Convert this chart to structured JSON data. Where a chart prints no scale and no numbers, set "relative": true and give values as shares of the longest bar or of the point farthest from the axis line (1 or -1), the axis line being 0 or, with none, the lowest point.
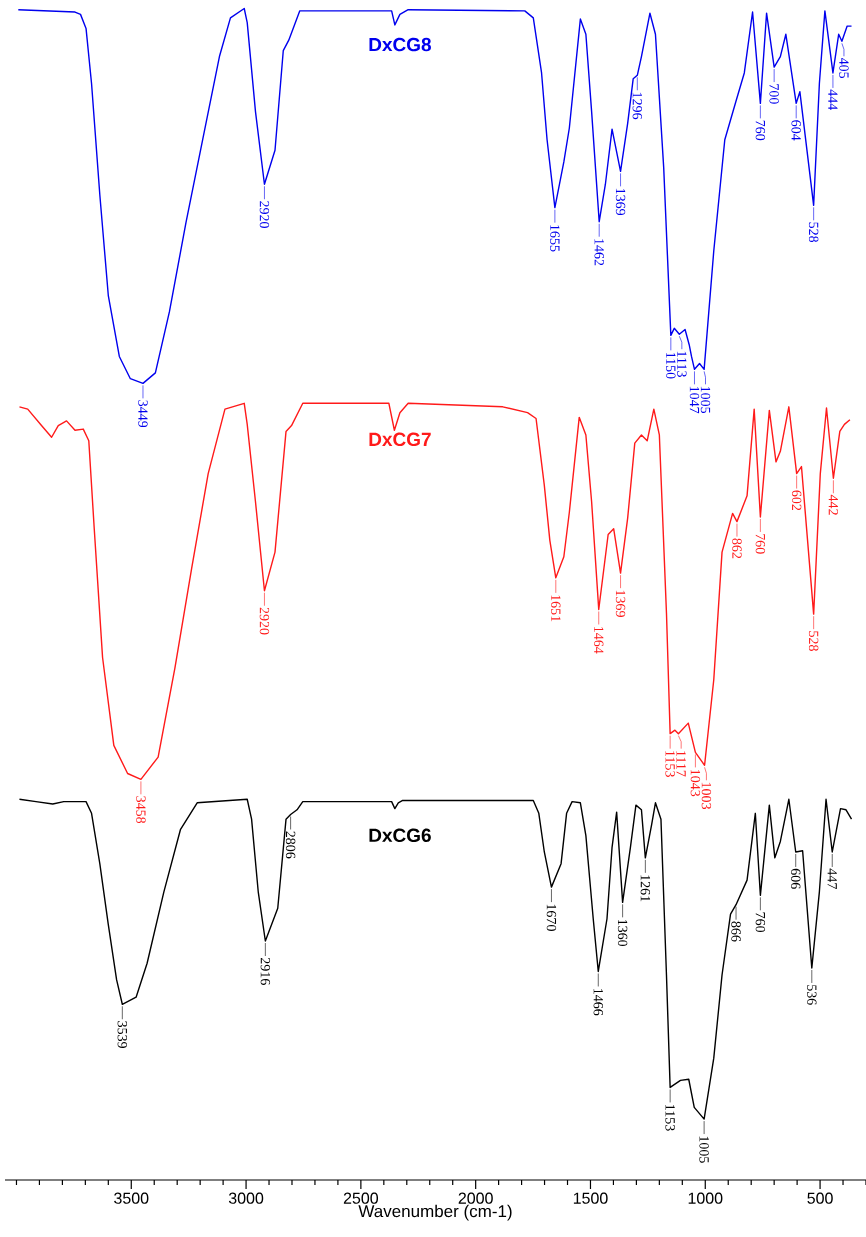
{
  "chart_data": {
    "type": "line",
    "relative": true,
    "xlabel": "Wavenumber (cm-1)",
    "xlim": [
      4050,
      300
    ],
    "xticks": [
      3500,
      3000,
      2500,
      2000,
      1500,
      1000,
      500
    ],
    "series": [
      {
        "name": "DxCG8",
        "color": "#0000ee",
        "x": [
          3992,
          3745,
          3721,
          3697,
          3673,
          3637,
          3600,
          3552,
          3504,
          3449,
          3395,
          3334,
          3262,
          3189,
          3116,
          3068,
          3008,
          2995,
          2959,
          2920,
          2874,
          2838,
          2814,
          2766,
          2366,
          2352,
          2330,
          2294,
          1786,
          1749,
          1713,
          1689,
          1655,
          1616,
          1592,
          1544,
          1520,
          1495,
          1462,
          1435,
          1406,
          1369,
          1338,
          1314,
          1296,
          1278,
          1241,
          1217,
          1181,
          1150,
          1135,
          1113,
          1088,
          1070,
          1060,
          1047,
          1025,
          1005,
          963,
          915,
          866,
          830,
          794,
          760,
          733,
          700,
          673,
          649,
          604,
          588,
          528,
          503,
          479,
          444,
          419,
          405,
          382,
          363
        ],
        "values": [
          0.999,
          0.997,
          0.995,
          0.983,
          0.936,
          0.841,
          0.755,
          0.703,
          0.684,
          0.68,
          0.689,
          0.741,
          0.817,
          0.888,
          0.959,
          0.992,
          1.0,
          0.988,
          0.912,
          0.85,
          0.879,
          0.964,
          0.973,
          0.998,
          0.998,
          0.986,
          0.995,
          0.999,
          0.998,
          0.992,
          0.945,
          0.888,
          0.83,
          0.869,
          0.898,
          0.991,
          0.978,
          0.912,
          0.818,
          0.85,
          0.897,
          0.861,
          0.902,
          0.94,
          0.943,
          0.959,
          0.996,
          0.978,
          0.864,
          0.721,
          0.727,
          0.722,
          0.726,
          0.713,
          0.703,
          0.692,
          0.697,
          0.692,
          0.793,
          0.888,
          0.921,
          0.945,
          0.997,
          0.919,
          0.996,
          0.95,
          0.959,
          0.978,
          0.919,
          0.929,
          0.832,
          0.936,
          0.998,
          0.945,
          0.978,
          0.972,
          0.985,
          0.985
        ]
      },
      {
        "name": "DxCG7",
        "color": "#ff1a1a",
        "x": [
          3987,
          3951,
          3891,
          3847,
          3818,
          3782,
          3745,
          3709,
          3685,
          3661,
          3625,
          3576,
          3516,
          3458,
          3383,
          3310,
          3237,
          3165,
          3092,
          3008,
          2995,
          2959,
          2920,
          2874,
          2826,
          2802,
          2753,
          2378,
          2354,
          2330,
          2294,
          1882,
          1774,
          1737,
          1701,
          1677,
          1651,
          1616,
          1592,
          1549,
          1520,
          1495,
          1464,
          1423,
          1399,
          1369,
          1338,
          1307,
          1278,
          1253,
          1224,
          1200,
          1169,
          1153,
          1132,
          1117,
          1074,
          1043,
          1003,
          963,
          927,
          881,
          862,
          818,
          787,
          760,
          721,
          692,
          673,
          636,
          602,
          581,
          528,
          499,
          472,
          442,
          414,
          394,
          370
        ],
        "values": [
          0.66,
          0.658,
          0.644,
          0.634,
          0.644,
          0.648,
          0.64,
          0.641,
          0.631,
          0.555,
          0.446,
          0.371,
          0.347,
          0.342,
          0.361,
          0.437,
          0.522,
          0.603,
          0.658,
          0.663,
          0.645,
          0.579,
          0.503,
          0.536,
          0.639,
          0.644,
          0.663,
          0.663,
          0.64,
          0.655,
          0.663,
          0.66,
          0.655,
          0.65,
          0.593,
          0.546,
          0.514,
          0.532,
          0.57,
          0.651,
          0.636,
          0.579,
          0.487,
          0.551,
          0.556,
          0.518,
          0.565,
          0.629,
          0.636,
          0.631,
          0.658,
          0.636,
          0.484,
          0.381,
          0.384,
          0.381,
          0.39,
          0.365,
          0.354,
          0.427,
          0.536,
          0.569,
          0.562,
          0.584,
          0.658,
          0.566,
          0.657,
          0.613,
          0.622,
          0.66,
          0.603,
          0.609,
          0.483,
          0.603,
          0.659,
          0.599,
          0.639,
          0.645,
          0.649
        ]
      },
      {
        "name": "DxCG6",
        "color": "#000000",
        "x": [
          3987,
          3915,
          3842,
          3794,
          3697,
          3673,
          3637,
          3600,
          3564,
          3539,
          3479,
          3431,
          3358,
          3286,
          3213,
          2995,
          2976,
          2947,
          2916,
          2862,
          2826,
          2806,
          2778,
          2753,
          2366,
          2352,
          2337,
          2318,
          1749,
          1725,
          1701,
          1670,
          1628,
          1604,
          1580,
          1544,
          1520,
          1488,
          1466,
          1428,
          1406,
          1386,
          1360,
          1326,
          1302,
          1278,
          1261,
          1234,
          1217,
          1193,
          1169,
          1153,
          1108,
          1072,
          1048,
          1005,
          963,
          927,
          890,
          866,
          818,
          782,
          760,
          721,
          697,
          673,
          636,
          606,
          576,
          536,
          503,
          474,
          447,
          411,
          387,
          363
        ],
        "values": [
          0.325,
          0.323,
          0.321,
          0.323,
          0.323,
          0.313,
          0.27,
          0.218,
          0.171,
          0.15,
          0.156,
          0.185,
          0.246,
          0.299,
          0.322,
          0.325,
          0.308,
          0.246,
          0.204,
          0.232,
          0.308,
          0.312,
          0.316,
          0.323,
          0.323,
          0.317,
          0.322,
          0.324,
          0.324,
          0.313,
          0.28,
          0.25,
          0.27,
          0.313,
          0.323,
          0.322,
          0.294,
          0.223,
          0.178,
          0.223,
          0.284,
          0.314,
          0.237,
          0.284,
          0.32,
          0.316,
          0.275,
          0.303,
          0.322,
          0.308,
          0.175,
          0.079,
          0.085,
          0.086,
          0.062,
          0.052,
          0.104,
          0.175,
          0.227,
          0.235,
          0.256,
          0.313,
          0.243,
          0.32,
          0.275,
          0.289,
          0.325,
          0.28,
          0.281,
          0.181,
          0.246,
          0.325,
          0.28,
          0.317,
          0.316,
          0.308
        ]
      }
    ],
    "annotations": [
      {
        "text": "3449",
        "x": 3449,
        "y": 0.68
      },
      {
        "text": "2920",
        "x": 2920,
        "y": 0.85
      },
      {
        "text": "1655",
        "x": 1655,
        "y": 0.83
      },
      {
        "text": "1462",
        "x": 1462,
        "y": 0.818
      },
      {
        "text": "1369",
        "x": 1369,
        "y": 0.861
      },
      {
        "text": "1296",
        "x": 1296,
        "y": 0.943
      },
      {
        "text": "1150",
        "x": 1150,
        "y": 0.721
      },
      {
        "text": "1113",
        "x": 1113,
        "y": 0.722
      },
      {
        "text": "1047",
        "x": 1047,
        "y": 0.692
      },
      {
        "text": "1005",
        "x": 1005,
        "y": 0.692
      },
      {
        "text": "760",
        "x": 760,
        "y": 0.919
      },
      {
        "text": "700",
        "x": 700,
        "y": 0.95
      },
      {
        "text": "604",
        "x": 604,
        "y": 0.919
      },
      {
        "text": "528",
        "x": 528,
        "y": 0.832
      },
      {
        "text": "444",
        "x": 444,
        "y": 0.945
      },
      {
        "text": "405",
        "x": 405,
        "y": 0.972
      },
      {
        "text": "3458",
        "x": 3458,
        "y": 0.342
      },
      {
        "text": "2920",
        "x": 2920,
        "y": 0.503
      },
      {
        "text": "1651",
        "x": 1651,
        "y": 0.514
      },
      {
        "text": "1464",
        "x": 1464,
        "y": 0.487
      },
      {
        "text": "1369",
        "x": 1369,
        "y": 0.518
      },
      {
        "text": "1153",
        "x": 1153,
        "y": 0.381
      },
      {
        "text": "1117",
        "x": 1117,
        "y": 0.381
      },
      {
        "text": "1043",
        "x": 1043,
        "y": 0.365
      },
      {
        "text": "1003",
        "x": 1003,
        "y": 0.354
      },
      {
        "text": "862",
        "x": 862,
        "y": 0.562
      },
      {
        "text": "760",
        "x": 760,
        "y": 0.566
      },
      {
        "text": "602",
        "x": 602,
        "y": 0.603
      },
      {
        "text": "528",
        "x": 528,
        "y": 0.483
      },
      {
        "text": "442",
        "x": 442,
        "y": 0.599
      },
      {
        "text": "3539",
        "x": 3539,
        "y": 0.15
      },
      {
        "text": "2916",
        "x": 2916,
        "y": 0.204
      },
      {
        "text": "2806",
        "x": 2806,
        "y": 0.312
      },
      {
        "text": "1670",
        "x": 1670,
        "y": 0.25
      },
      {
        "text": "1466",
        "x": 1466,
        "y": 0.178
      },
      {
        "text": "1360",
        "x": 1360,
        "y": 0.237
      },
      {
        "text": "1261",
        "x": 1261,
        "y": 0.275
      },
      {
        "text": "1153",
        "x": 1153,
        "y": 0.079
      },
      {
        "text": "1005",
        "x": 1005,
        "y": 0.052
      },
      {
        "text": "866",
        "x": 866,
        "y": 0.235
      },
      {
        "text": "760",
        "x": 760,
        "y": 0.243
      },
      {
        "text": "606",
        "x": 606,
        "y": 0.28
      },
      {
        "text": "536",
        "x": 536,
        "y": 0.181
      },
      {
        "text": "447",
        "x": 447,
        "y": 0.28
      }
    ]
  }
}
